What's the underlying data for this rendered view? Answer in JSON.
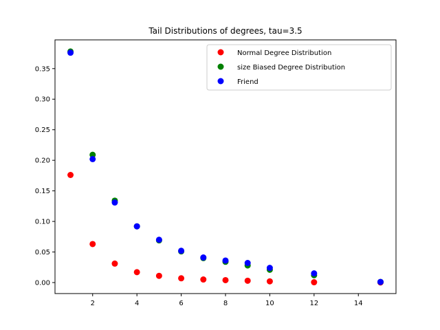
{
  "chart_data": {
    "type": "scatter",
    "title": "Tail Distributions of degrees, tau=3.5",
    "xlabel": "",
    "ylabel": "",
    "xlim": [
      0.3,
      15.7
    ],
    "ylim": [
      -0.018,
      0.397
    ],
    "x_ticks": [
      2,
      4,
      6,
      8,
      10,
      12,
      14
    ],
    "x_tick_labels": [
      "2",
      "4",
      "6",
      "8",
      "10",
      "12",
      "14"
    ],
    "y_ticks": [
      0.0,
      0.05,
      0.1,
      0.15,
      0.2,
      0.25,
      0.3,
      0.35
    ],
    "y_tick_labels": [
      "0.00",
      "0.05",
      "0.10",
      "0.15",
      "0.20",
      "0.25",
      "0.30",
      "0.35"
    ],
    "grid": false,
    "legend_position": "top-right",
    "series": [
      {
        "name": "Normal Degree Distribution",
        "color": "#ff0000",
        "x": [
          1,
          2,
          3,
          4,
          5,
          6,
          7,
          8,
          9,
          10,
          12,
          15
        ],
        "y": [
          0.176,
          0.063,
          0.031,
          0.017,
          0.011,
          0.007,
          0.005,
          0.004,
          0.003,
          0.002,
          0.0005,
          0.0002
        ]
      },
      {
        "name": "size Biased Degree Distribution",
        "color": "#008000",
        "x": [
          1,
          2,
          3,
          4,
          5,
          6,
          7,
          8,
          9,
          10,
          12,
          15
        ],
        "y": [
          0.378,
          0.209,
          0.134,
          0.092,
          0.069,
          0.051,
          0.04,
          0.034,
          0.028,
          0.021,
          0.012,
          0.001
        ]
      },
      {
        "name": "Friend",
        "color": "#0000ff",
        "x": [
          1,
          2,
          3,
          4,
          5,
          6,
          7,
          8,
          9,
          10,
          12,
          15
        ],
        "y": [
          0.376,
          0.202,
          0.131,
          0.092,
          0.07,
          0.052,
          0.041,
          0.036,
          0.032,
          0.024,
          0.015,
          0.001
        ]
      }
    ]
  }
}
